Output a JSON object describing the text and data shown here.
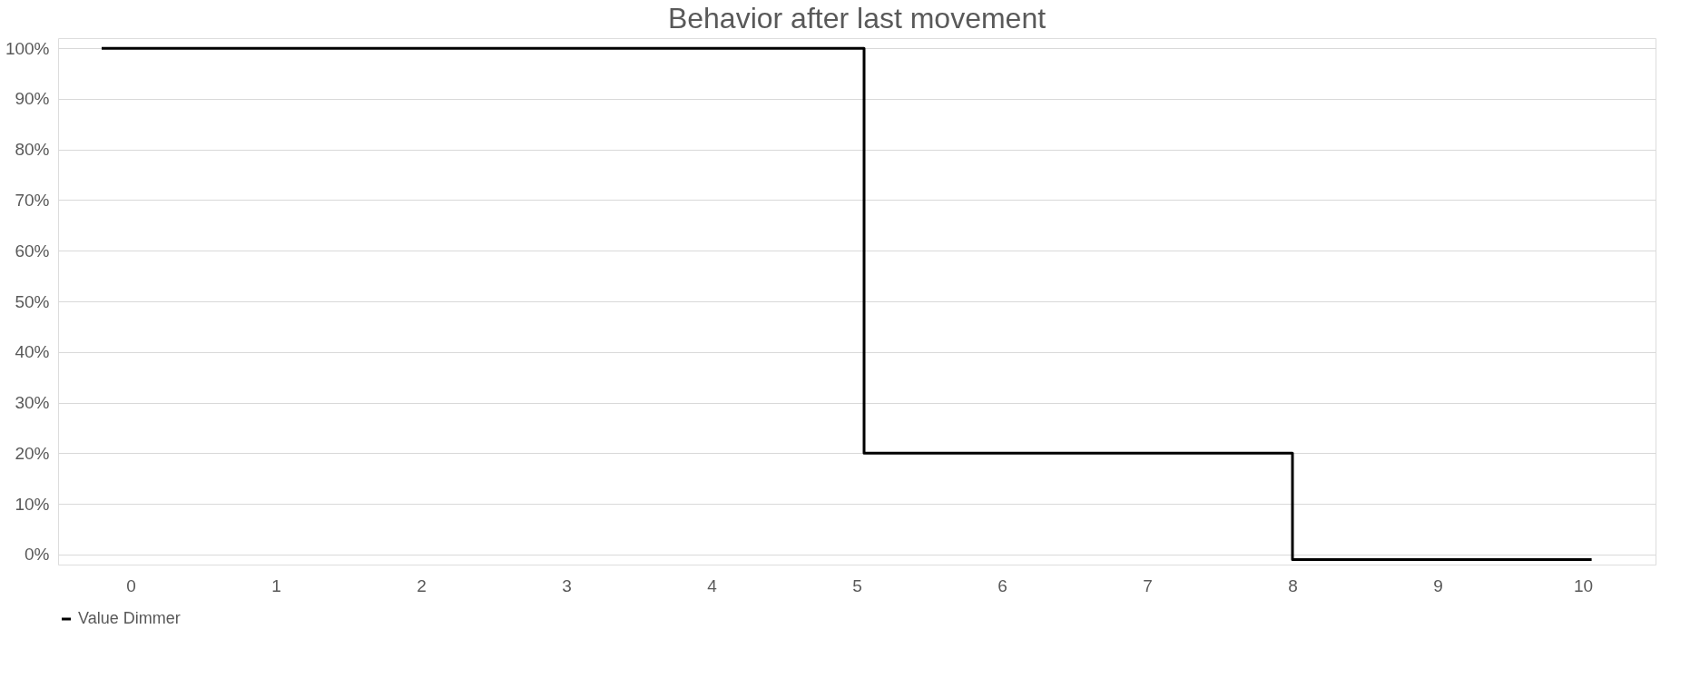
{
  "chart_data": {
    "type": "line",
    "title": "Behavior after last movement",
    "series": [
      {
        "name": "Value Dimmer",
        "color": "#000000",
        "x": [
          -0.2,
          5.05,
          5.05,
          8.0,
          8.0,
          10.06
        ],
        "values": [
          100,
          100,
          20,
          20,
          -1,
          -1
        ]
      }
    ],
    "xlim": [
      -0.5,
      10.5
    ],
    "xticks": [
      0,
      1,
      2,
      3,
      4,
      5,
      6,
      7,
      8,
      9,
      10
    ],
    "ylim": [
      -2,
      102
    ],
    "yticks": [
      {
        "value": 0,
        "label": "0%"
      },
      {
        "value": 10,
        "label": "10%"
      },
      {
        "value": 20,
        "label": "20%"
      },
      {
        "value": 30,
        "label": "30%"
      },
      {
        "value": 40,
        "label": "40%"
      },
      {
        "value": 50,
        "label": "50%"
      },
      {
        "value": 60,
        "label": "60%"
      },
      {
        "value": 70,
        "label": "70%"
      },
      {
        "value": 80,
        "label": "80%"
      },
      {
        "value": 90,
        "label": "90%"
      },
      {
        "value": 100,
        "label": "100%"
      }
    ],
    "grid": "y",
    "legend": "bottom",
    "marker": "none",
    "line_style": "solid"
  }
}
